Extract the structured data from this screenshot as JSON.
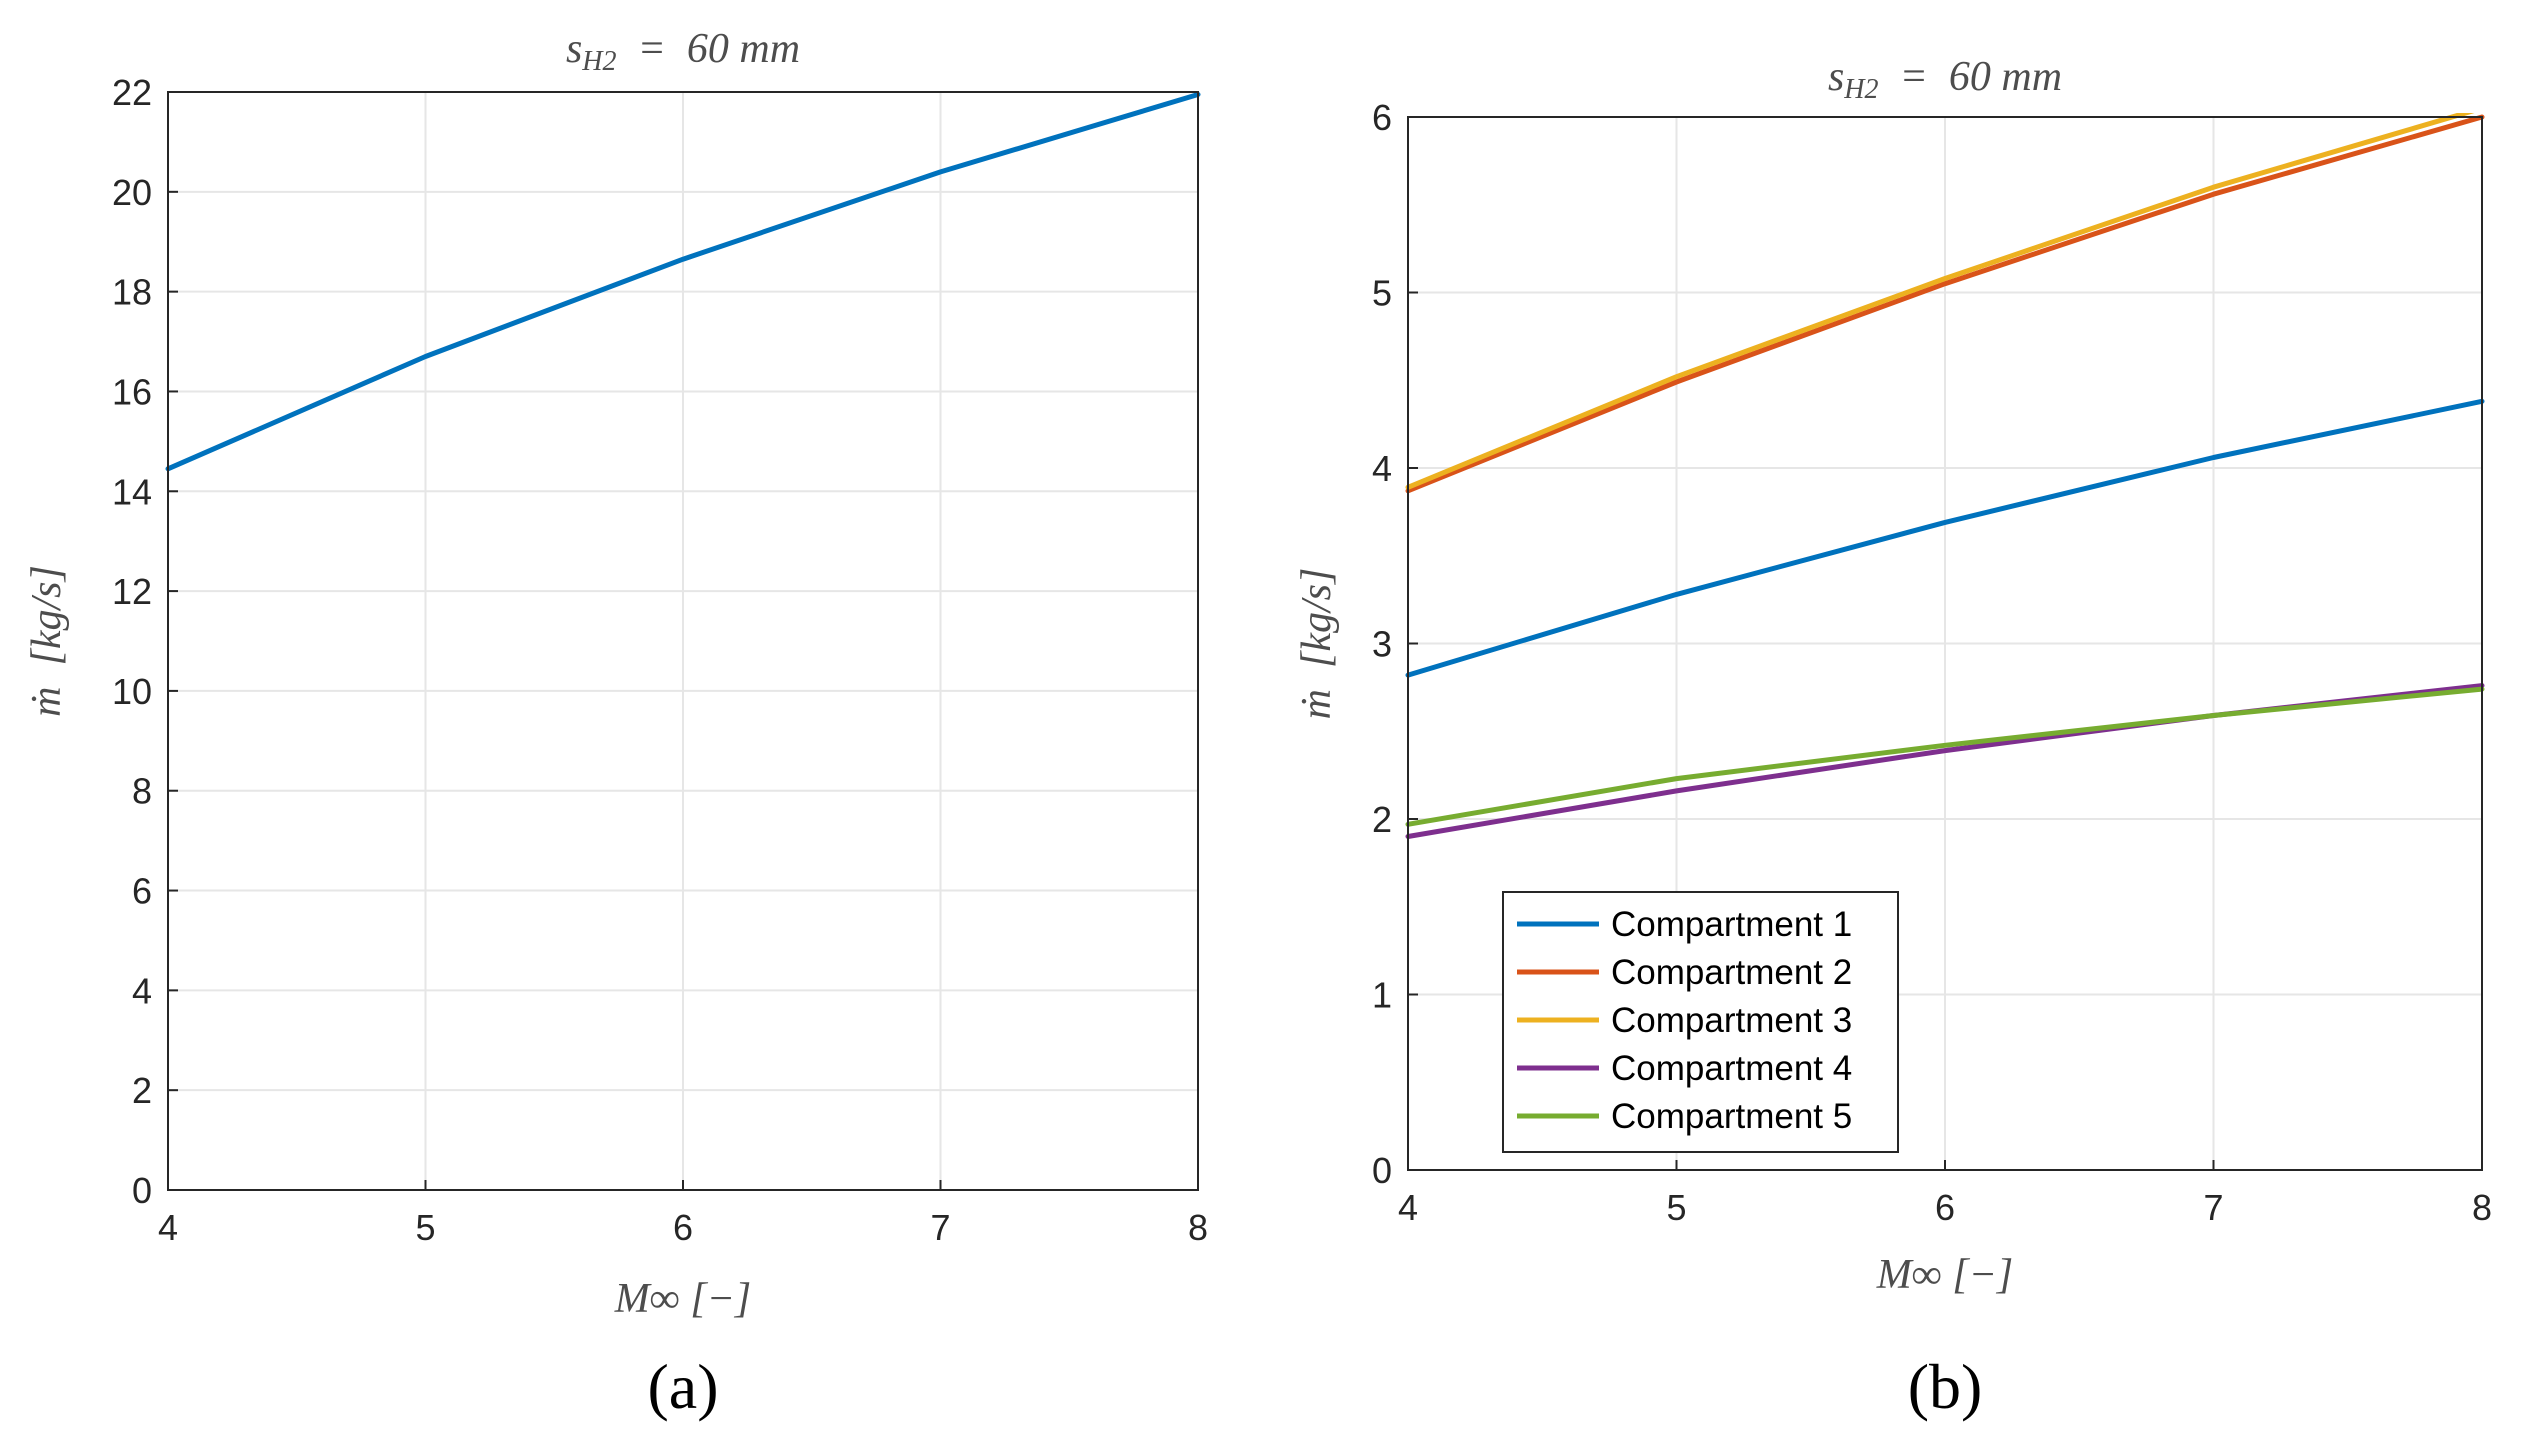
{
  "chart_data": [
    {
      "id": "a",
      "type": "line",
      "title": "s_H2  =  60 mm",
      "title_main": "s",
      "title_sub": "H2",
      "title_rest": "  =  60 mm",
      "xlabel": "M∞ [−]",
      "ylabel": "ṁ  [kg/s]",
      "panel_label": "(a)",
      "xlim": [
        4,
        8
      ],
      "ylim": [
        0,
        22
      ],
      "xticks": [
        "4",
        "5",
        "6",
        "7",
        "8"
      ],
      "yticks": [
        "0",
        "2",
        "4",
        "6",
        "8",
        "10",
        "12",
        "14",
        "16",
        "18",
        "20",
        "22"
      ],
      "grid": true,
      "legend": null,
      "series": [
        {
          "color": "#0072BD",
          "x": [
            4,
            5,
            6,
            7,
            8
          ],
          "values": [
            14.45,
            16.7,
            18.65,
            20.4,
            21.95
          ]
        }
      ]
    },
    {
      "id": "b",
      "type": "line",
      "title": "s_H2  =  60 mm",
      "title_main": "s",
      "title_sub": "H2",
      "title_rest": "  =  60 mm",
      "xlabel": "M∞ [−]",
      "ylabel": "ṁ  [kg/s]",
      "panel_label": "(b)",
      "xlim": [
        4,
        8
      ],
      "ylim": [
        0,
        6
      ],
      "xticks": [
        "4",
        "5",
        "6",
        "7",
        "8"
      ],
      "yticks": [
        "0",
        "1",
        "2",
        "3",
        "4",
        "5",
        "6"
      ],
      "grid": true,
      "legend": "bottom-left",
      "series": [
        {
          "name": "Compartment 1",
          "color": "#0072BD",
          "x": [
            4,
            5,
            6,
            7,
            8
          ],
          "values": [
            2.82,
            3.28,
            3.69,
            4.06,
            4.38
          ]
        },
        {
          "name": "Compartment 2",
          "color": "#D95319",
          "x": [
            4,
            5,
            6,
            7,
            8
          ],
          "values": [
            3.87,
            4.49,
            5.05,
            5.56,
            6.0
          ]
        },
        {
          "name": "Compartment 3",
          "color": "#EDB120",
          "x": [
            4,
            5,
            6,
            7,
            8
          ],
          "values": [
            3.89,
            4.52,
            5.08,
            5.6,
            6.05
          ]
        },
        {
          "name": "Compartment 4",
          "color": "#7E2F8E",
          "x": [
            4,
            5,
            6,
            7,
            8
          ],
          "values": [
            1.9,
            2.16,
            2.39,
            2.59,
            2.76
          ]
        },
        {
          "name": "Compartment 5",
          "color": "#77AC30",
          "x": [
            4,
            5,
            6,
            7,
            8
          ],
          "values": [
            1.97,
            2.23,
            2.42,
            2.59,
            2.74
          ]
        }
      ]
    }
  ]
}
